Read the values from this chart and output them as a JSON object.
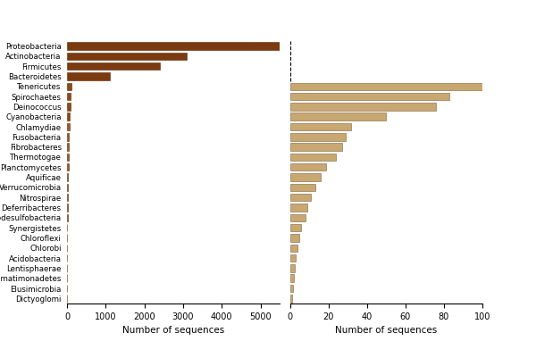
{
  "categories": [
    "Proteobacteria",
    "Actinobacteria",
    "Firmicutes",
    "Bacteroidetes",
    "Tenericutes",
    "Spirochaetes",
    "Deinococcus",
    "Cyanobacteria",
    "Chlamydiae",
    "Fusobacteria",
    "Fibrobacteres",
    "Thermotogae",
    "Planctomycetes",
    "Aquificae",
    "Verrucomicrobia",
    "Nitrospirae",
    "Deferribacteres",
    "Thermodesulfobacteria",
    "Synergistetes",
    "Chloroflexi",
    "Chlorobi",
    "Acidobacteria",
    "Lentisphaerae",
    "Gemmatimonadetes",
    "Elusimicrobia",
    "Dictyoglomi"
  ],
  "left_values": [
    5500,
    3100,
    2400,
    1100,
    120,
    100,
    90,
    80,
    65,
    55,
    50,
    40,
    35,
    30,
    22,
    18,
    14,
    12,
    10,
    8,
    7,
    5,
    4,
    3,
    2,
    1
  ],
  "right_values": [
    null,
    null,
    null,
    null,
    100,
    83,
    76,
    50,
    32,
    29,
    27,
    24,
    19,
    16,
    13,
    11,
    9,
    8,
    6,
    5,
    4,
    3,
    2.5,
    2,
    1.5,
    1
  ],
  "left_dark_color": "#7B3A10",
  "left_medium_color": "#8B4A1A",
  "left_small_color": "#9B5A2A",
  "right_color": "#C8A870",
  "right_edge_color": "#7A6040",
  "left_edge_color": "#5A2A08",
  "left_xlabel": "Number of sequences",
  "right_xlabel": "Number of sequences",
  "left_xlim": [
    0,
    5500
  ],
  "right_xlim": [
    0,
    100
  ],
  "left_xticks": [
    0,
    1000,
    2000,
    3000,
    4000,
    5000
  ],
  "right_xticks": [
    0,
    20,
    40,
    60,
    80,
    100
  ],
  "fig_width": 6.0,
  "fig_height": 3.82,
  "dpi": 100,
  "bar_height": 0.75
}
